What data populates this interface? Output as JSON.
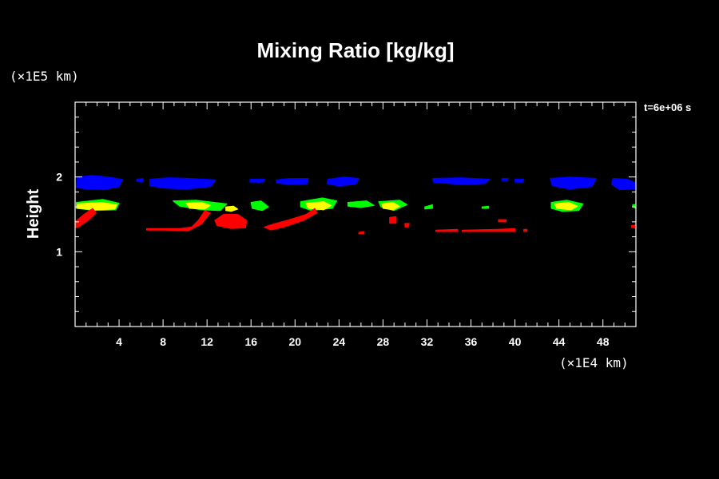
{
  "chart_data": {
    "type": "heatmap",
    "title": "Mixing Ratio [kg/kg]",
    "xlabel": "",
    "ylabel": "Height",
    "x_unit": "(×1E4 km)",
    "y_unit": "(×1E5 km)",
    "time_label": "t=6e+06 s",
    "xlim": [
      0,
      51
    ],
    "ylim": [
      0,
      3
    ],
    "x_ticks": [
      4,
      8,
      12,
      16,
      20,
      24,
      28,
      32,
      36,
      40,
      44,
      48
    ],
    "y_ticks": [
      1,
      2
    ],
    "colors": {
      "blue": "#0000ff",
      "green": "#00ff00",
      "yellow": "#ffff00",
      "red": "#ff0000"
    },
    "regions": [
      {
        "color": "blue",
        "points": [
          [
            0.2,
            2.0
          ],
          [
            1.5,
            2.02
          ],
          [
            3.0,
            2.0
          ],
          [
            4.3,
            1.97
          ],
          [
            4.0,
            1.87
          ],
          [
            2.6,
            1.83
          ],
          [
            1.0,
            1.84
          ],
          [
            0.1,
            1.86
          ]
        ]
      },
      {
        "color": "blue",
        "points": [
          [
            5.6,
            1.97
          ],
          [
            6.2,
            1.98
          ],
          [
            6.1,
            1.93
          ],
          [
            5.6,
            1.94
          ]
        ]
      },
      {
        "color": "blue",
        "points": [
          [
            6.8,
            1.97
          ],
          [
            8.5,
            1.99
          ],
          [
            10.5,
            1.98
          ],
          [
            12.8,
            1.96
          ],
          [
            12.3,
            1.87
          ],
          [
            10.2,
            1.84
          ],
          [
            8.2,
            1.85
          ],
          [
            6.8,
            1.88
          ]
        ]
      },
      {
        "color": "blue",
        "points": [
          [
            15.9,
            1.97
          ],
          [
            17.2,
            1.97
          ],
          [
            17.1,
            1.93
          ],
          [
            15.9,
            1.93
          ]
        ]
      },
      {
        "color": "blue",
        "points": [
          [
            18.3,
            1.96
          ],
          [
            19.5,
            1.98
          ],
          [
            21.2,
            1.98
          ],
          [
            21.1,
            1.91
          ],
          [
            19.5,
            1.9
          ],
          [
            18.3,
            1.92
          ]
        ]
      },
      {
        "color": "blue",
        "points": [
          [
            23.0,
            1.97
          ],
          [
            24.4,
            2.0
          ],
          [
            25.8,
            1.98
          ],
          [
            25.5,
            1.9
          ],
          [
            23.9,
            1.88
          ],
          [
            22.9,
            1.91
          ]
        ]
      },
      {
        "color": "blue",
        "points": [
          [
            32.5,
            1.98
          ],
          [
            35.0,
            1.99
          ],
          [
            37.7,
            1.97
          ],
          [
            37.2,
            1.91
          ],
          [
            35.0,
            1.9
          ],
          [
            32.6,
            1.93
          ]
        ]
      },
      {
        "color": "blue",
        "points": [
          [
            38.8,
            1.98
          ],
          [
            39.4,
            1.98
          ],
          [
            39.3,
            1.95
          ],
          [
            38.8,
            1.95
          ]
        ]
      },
      {
        "color": "blue",
        "points": [
          [
            40.0,
            1.97
          ],
          [
            40.8,
            1.97
          ],
          [
            40.7,
            1.93
          ],
          [
            40.0,
            1.93
          ]
        ]
      },
      {
        "color": "blue",
        "points": [
          [
            43.2,
            1.98
          ],
          [
            45.0,
            2.0
          ],
          [
            47.4,
            1.98
          ],
          [
            47.0,
            1.87
          ],
          [
            45.0,
            1.84
          ],
          [
            43.4,
            1.88
          ]
        ]
      },
      {
        "color": "blue",
        "points": [
          [
            48.9,
            1.98
          ],
          [
            50.2,
            1.97
          ],
          [
            51.0,
            1.92
          ],
          [
            51.0,
            1.84
          ],
          [
            49.5,
            1.83
          ],
          [
            48.8,
            1.9
          ]
        ]
      },
      {
        "color": "green",
        "points": [
          [
            0.1,
            1.66
          ],
          [
            2.5,
            1.7
          ],
          [
            4.0,
            1.65
          ],
          [
            3.7,
            1.56
          ],
          [
            1.8,
            1.55
          ],
          [
            0.1,
            1.58
          ]
        ]
      },
      {
        "color": "green",
        "points": [
          [
            8.9,
            1.68
          ],
          [
            11.0,
            1.69
          ],
          [
            13.8,
            1.64
          ],
          [
            13.2,
            1.55
          ],
          [
            11.5,
            1.56
          ],
          [
            9.5,
            1.61
          ]
        ]
      },
      {
        "color": "green",
        "points": [
          [
            16.0,
            1.66
          ],
          [
            16.9,
            1.68
          ],
          [
            17.6,
            1.6
          ],
          [
            17.0,
            1.55
          ],
          [
            16.1,
            1.58
          ]
        ]
      },
      {
        "color": "green",
        "points": [
          [
            20.5,
            1.67
          ],
          [
            22.5,
            1.72
          ],
          [
            23.8,
            1.68
          ],
          [
            23.4,
            1.58
          ],
          [
            21.5,
            1.55
          ],
          [
            20.5,
            1.6
          ]
        ]
      },
      {
        "color": "green",
        "points": [
          [
            24.8,
            1.66
          ],
          [
            26.5,
            1.68
          ],
          [
            27.2,
            1.62
          ],
          [
            26.0,
            1.59
          ],
          [
            24.8,
            1.61
          ]
        ]
      },
      {
        "color": "green",
        "points": [
          [
            27.6,
            1.67
          ],
          [
            29.5,
            1.69
          ],
          [
            30.2,
            1.63
          ],
          [
            29.0,
            1.55
          ],
          [
            27.8,
            1.6
          ]
        ]
      },
      {
        "color": "green",
        "points": [
          [
            31.8,
            1.6
          ],
          [
            32.5,
            1.63
          ],
          [
            32.5,
            1.58
          ],
          [
            31.8,
            1.57
          ]
        ]
      },
      {
        "color": "green",
        "points": [
          [
            37.0,
            1.6
          ],
          [
            37.6,
            1.61
          ],
          [
            37.6,
            1.58
          ],
          [
            37.0,
            1.58
          ]
        ]
      },
      {
        "color": "green",
        "points": [
          [
            43.3,
            1.66
          ],
          [
            44.7,
            1.69
          ],
          [
            46.2,
            1.64
          ],
          [
            45.8,
            1.55
          ],
          [
            44.3,
            1.54
          ],
          [
            43.3,
            1.58
          ]
        ]
      },
      {
        "color": "green",
        "points": [
          [
            50.7,
            1.63
          ],
          [
            51.0,
            1.63
          ],
          [
            51.0,
            1.58
          ],
          [
            50.7,
            1.6
          ]
        ]
      },
      {
        "color": "yellow",
        "points": [
          [
            0.2,
            1.64
          ],
          [
            2.3,
            1.66
          ],
          [
            3.8,
            1.63
          ],
          [
            3.6,
            1.57
          ],
          [
            1.8,
            1.56
          ],
          [
            0.2,
            1.58
          ]
        ]
      },
      {
        "color": "yellow",
        "points": [
          [
            10.1,
            1.65
          ],
          [
            11.5,
            1.66
          ],
          [
            12.3,
            1.62
          ],
          [
            11.8,
            1.57
          ],
          [
            10.4,
            1.58
          ]
        ]
      },
      {
        "color": "yellow",
        "points": [
          [
            13.7,
            1.6
          ],
          [
            14.4,
            1.61
          ],
          [
            14.8,
            1.57
          ],
          [
            14.2,
            1.54
          ],
          [
            13.7,
            1.55
          ]
        ]
      },
      {
        "color": "yellow",
        "points": [
          [
            21.0,
            1.65
          ],
          [
            22.6,
            1.67
          ],
          [
            23.3,
            1.62
          ],
          [
            22.6,
            1.56
          ],
          [
            21.2,
            1.58
          ]
        ]
      },
      {
        "color": "yellow",
        "points": [
          [
            27.9,
            1.64
          ],
          [
            28.9,
            1.66
          ],
          [
            29.5,
            1.61
          ],
          [
            28.9,
            1.56
          ],
          [
            28.0,
            1.58
          ]
        ]
      },
      {
        "color": "yellow",
        "points": [
          [
            43.6,
            1.64
          ],
          [
            44.9,
            1.66
          ],
          [
            45.7,
            1.61
          ],
          [
            45.1,
            1.56
          ],
          [
            43.8,
            1.58
          ]
        ]
      },
      {
        "color": "red",
        "points": [
          [
            0.0,
            1.4
          ],
          [
            0.8,
            1.5
          ],
          [
            1.6,
            1.58
          ],
          [
            1.9,
            1.52
          ],
          [
            1.2,
            1.42
          ],
          [
            0.3,
            1.33
          ],
          [
            0.0,
            1.32
          ]
        ]
      },
      {
        "color": "red",
        "points": [
          [
            6.5,
            1.31
          ],
          [
            9.5,
            1.31
          ],
          [
            10.6,
            1.33
          ],
          [
            11.2,
            1.42
          ],
          [
            11.8,
            1.55
          ],
          [
            12.3,
            1.52
          ],
          [
            11.5,
            1.37
          ],
          [
            10.3,
            1.28
          ],
          [
            8.0,
            1.29
          ],
          [
            6.5,
            1.29
          ]
        ]
      },
      {
        "color": "red",
        "points": [
          [
            12.7,
            1.42
          ],
          [
            13.5,
            1.5
          ],
          [
            14.8,
            1.5
          ],
          [
            15.6,
            1.42
          ],
          [
            15.5,
            1.32
          ],
          [
            14.2,
            1.31
          ],
          [
            12.9,
            1.35
          ]
        ]
      },
      {
        "color": "red",
        "points": [
          [
            17.2,
            1.33
          ],
          [
            18.0,
            1.37
          ],
          [
            19.5,
            1.43
          ],
          [
            21.0,
            1.5
          ],
          [
            21.8,
            1.58
          ],
          [
            22.0,
            1.52
          ],
          [
            20.8,
            1.42
          ],
          [
            19.0,
            1.33
          ],
          [
            17.8,
            1.29
          ]
        ]
      },
      {
        "color": "red",
        "points": [
          [
            25.8,
            1.26
          ],
          [
            26.3,
            1.27
          ],
          [
            26.2,
            1.24
          ],
          [
            25.8,
            1.24
          ]
        ]
      },
      {
        "color": "red",
        "points": [
          [
            28.6,
            1.46
          ],
          [
            29.2,
            1.47
          ],
          [
            29.2,
            1.38
          ],
          [
            28.6,
            1.38
          ]
        ]
      },
      {
        "color": "red",
        "points": [
          [
            30.0,
            1.38
          ],
          [
            30.4,
            1.38
          ],
          [
            30.3,
            1.33
          ],
          [
            30.0,
            1.33
          ]
        ]
      },
      {
        "color": "red",
        "points": [
          [
            32.8,
            1.29
          ],
          [
            34.8,
            1.3
          ],
          [
            34.8,
            1.27
          ],
          [
            32.8,
            1.27
          ]
        ]
      },
      {
        "color": "red",
        "points": [
          [
            35.2,
            1.29
          ],
          [
            38.5,
            1.3
          ],
          [
            40.0,
            1.31
          ],
          [
            40.0,
            1.27
          ],
          [
            35.2,
            1.27
          ]
        ]
      },
      {
        "color": "red",
        "points": [
          [
            38.5,
            1.43
          ],
          [
            39.2,
            1.43
          ],
          [
            39.2,
            1.4
          ],
          [
            38.5,
            1.4
          ]
        ]
      },
      {
        "color": "red",
        "points": [
          [
            40.8,
            1.3
          ],
          [
            41.1,
            1.3
          ],
          [
            41.1,
            1.27
          ],
          [
            40.8,
            1.27
          ]
        ]
      },
      {
        "color": "red",
        "points": [
          [
            50.6,
            1.35
          ],
          [
            51.0,
            1.36
          ],
          [
            51.0,
            1.31
          ],
          [
            50.6,
            1.33
          ]
        ]
      }
    ]
  }
}
